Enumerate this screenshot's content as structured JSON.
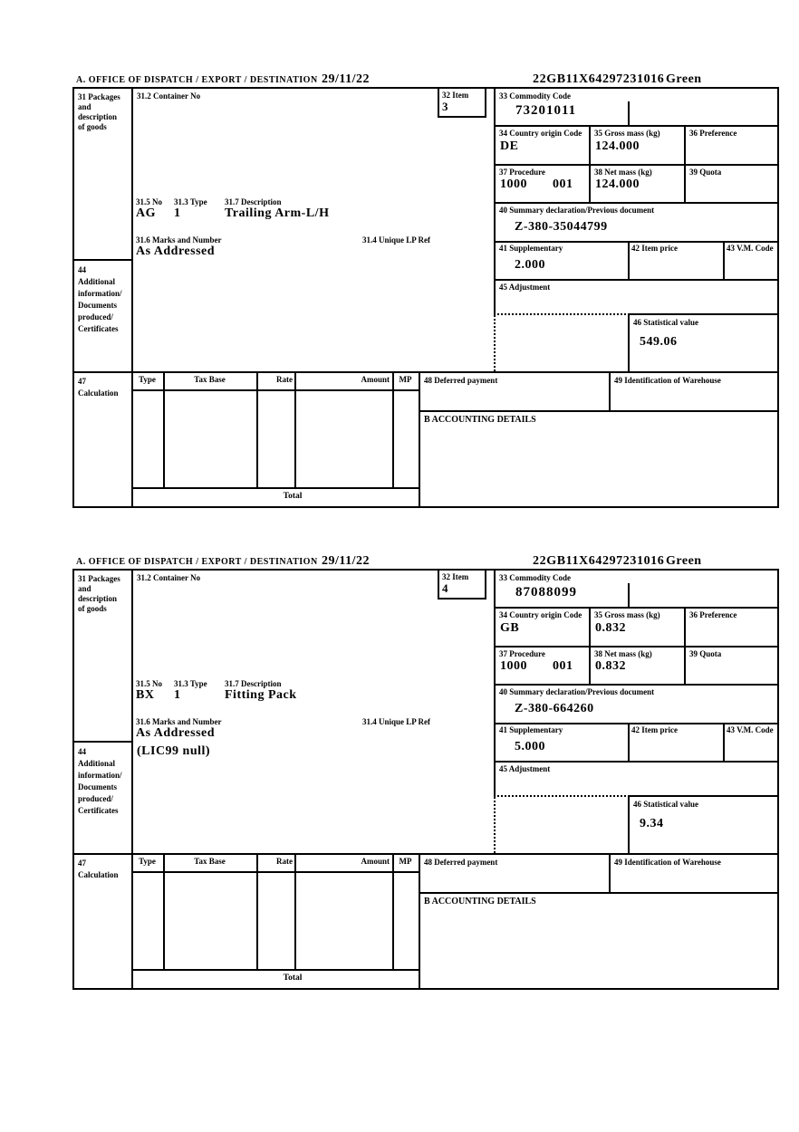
{
  "document": {
    "labels": {
      "section_a": "A. OFFICE OF DISPATCH / EXPORT / DESTINATION",
      "box31": "31 Packages\nand\ndescription\nof goods",
      "box31_2": "31.2 Container No",
      "box32": "32 Item",
      "box33": "33 Commodity Code",
      "box34": "34 Country origin Code",
      "box35": "35 Gross mass (kg)",
      "box36": "36 Preference",
      "box37": "37 Procedure",
      "box38": "38 Net mass (kg)",
      "box39": "39 Quota",
      "box31_5": "31.5 No",
      "box31_3": "31.3 Type",
      "box31_7": "31.7 Description",
      "box31_6": "31.6 Marks and Number",
      "box31_4": "31.4 Unique LP Ref",
      "box40": "40 Summary declaration/Previous document",
      "box41": "41 Supplementary",
      "box42": "42 Item price",
      "box43": "43 V.M. Code",
      "box44": "44\nAdditional\ninformation/\nDocuments\nproduced/\nCertificates",
      "box45": "45 Adjustment",
      "box46": "46 Statistical value",
      "box47": "47\nCalculation",
      "col_type": "Type",
      "col_tax_base": "Tax Base",
      "col_rate": "Rate",
      "col_amount": "Amount",
      "col_mp": "MP",
      "box48": "48 Deferred payment",
      "box49": "49 Identification of Warehouse",
      "accounting": "B ACCOUNTING DETAILS",
      "total": "Total"
    },
    "forms": [
      {
        "date": "29/11/22",
        "entry_number": "22GB11X64297231016",
        "routing": "Green",
        "item": "3",
        "commodity_code": "73201011",
        "country_origin_code": "DE",
        "gross_mass_kg": "124.000",
        "procedure": "1000",
        "procedure_extra": "001",
        "net_mass_kg": "124.000",
        "package_no": "AG",
        "package_type": "1",
        "description": "Trailing Arm-L/H",
        "marks_and_number": "As Addressed",
        "unique_lp_ref": "",
        "summary_declaration": "Z-380-35044799",
        "supplementary": "2.000",
        "additional_information": "",
        "statistical_value": "549.06"
      },
      {
        "date": "29/11/22",
        "entry_number": "22GB11X64297231016",
        "routing": "Green",
        "item": "4",
        "commodity_code": "87088099",
        "country_origin_code": "GB",
        "gross_mass_kg": "0.832",
        "procedure": "1000",
        "procedure_extra": "001",
        "net_mass_kg": "0.832",
        "package_no": "BX",
        "package_type": "1",
        "description": "Fitting Pack",
        "marks_and_number": "As Addressed",
        "unique_lp_ref": "",
        "summary_declaration": "Z-380-664260",
        "supplementary": "5.000",
        "additional_information": "(LIC99 null)",
        "statistical_value": "9.34"
      }
    ]
  }
}
